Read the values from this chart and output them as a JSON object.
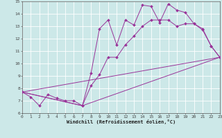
{
  "xlabel": "Windchill (Refroidissement éolien,°C)",
  "bg_color": "#cce8e8",
  "grid_color": "#ffffff",
  "line_color": "#993399",
  "xmin": 0,
  "xmax": 23,
  "ymin": 6,
  "ymax": 15,
  "line1_x": [
    0,
    1,
    2,
    3,
    4,
    5,
    6,
    7,
    8,
    9,
    10,
    11,
    12,
    13,
    14,
    15,
    16,
    17,
    18,
    19,
    20,
    21,
    22,
    23
  ],
  "line1_y": [
    7.7,
    7.3,
    6.6,
    7.5,
    7.2,
    7.0,
    7.0,
    6.6,
    9.2,
    12.8,
    13.5,
    11.5,
    13.5,
    13.1,
    14.7,
    14.6,
    13.3,
    14.8,
    14.3,
    14.1,
    13.2,
    12.8,
    11.4,
    10.5
  ],
  "line2_x": [
    0,
    7,
    8,
    9,
    10,
    11,
    12,
    13,
    14,
    15,
    16,
    17,
    18,
    19,
    20,
    21,
    22,
    23
  ],
  "line2_y": [
    7.7,
    6.6,
    8.2,
    9.1,
    10.5,
    10.5,
    11.5,
    12.2,
    13.0,
    13.5,
    13.5,
    13.5,
    13.0,
    13.2,
    13.2,
    12.7,
    11.4,
    10.5
  ],
  "line3_x": [
    0,
    23
  ],
  "line3_y": [
    7.7,
    10.5
  ],
  "line4_x": [
    0,
    7,
    23
  ],
  "line4_y": [
    7.7,
    6.6,
    10.5
  ],
  "xtick_labels": [
    "0",
    "1",
    "2",
    "3",
    "4",
    "5",
    "6",
    "7",
    "8",
    "9",
    "10",
    "11",
    "12",
    "13",
    "14",
    "15",
    "16",
    "17",
    "18",
    "19",
    "20",
    "21",
    "22",
    "23"
  ],
  "ytick_labels": [
    "6",
    "7",
    "8",
    "9",
    "10",
    "11",
    "12",
    "13",
    "14",
    "15"
  ],
  "marker": "D",
  "markersize": 2,
  "linewidth": 0.7
}
